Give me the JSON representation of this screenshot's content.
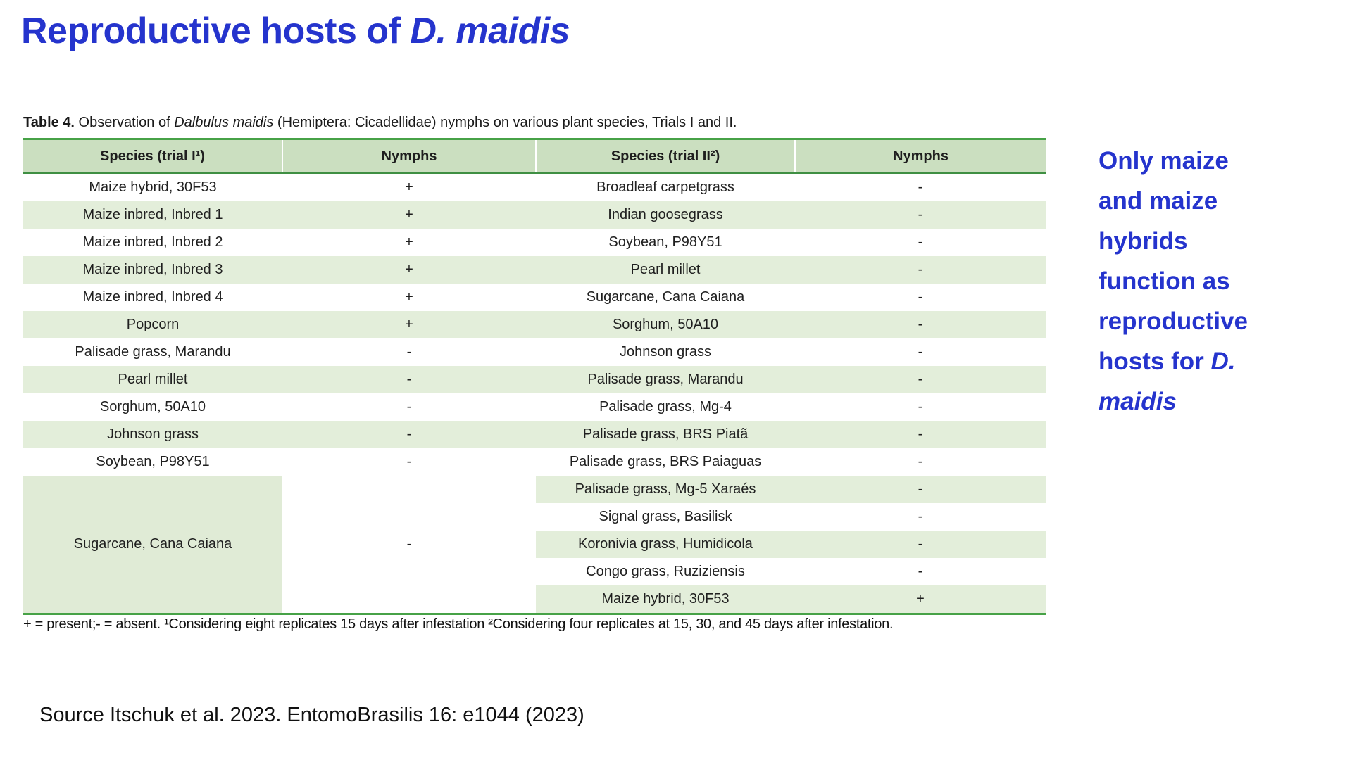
{
  "title": {
    "prefix": "Reproductive hosts of ",
    "italic": "D. maidis"
  },
  "caption": {
    "label": "Table 4.",
    "text_before_italic": " Observation of ",
    "italic": "Dalbulus maidis",
    "text_after_italic": " (Hemiptera: Cicadellidae) nymphs on various plant species, Trials I and II."
  },
  "table": {
    "columns": [
      "Species (trial I¹)",
      "Nymphs",
      "Species (trial II²)",
      "Nymphs"
    ],
    "rows": [
      {
        "species1": "Maize hybrid, 30F53",
        "nymphs1": "+",
        "species2": "Broadleaf carpetgrass",
        "nymphs2": "-"
      },
      {
        "species1": "Maize inbred, Inbred 1",
        "nymphs1": "+",
        "species2": "Indian goosegrass",
        "nymphs2": "-"
      },
      {
        "species1": "Maize inbred, Inbred 2",
        "nymphs1": "+",
        "species2": "Soybean, P98Y51",
        "nymphs2": "-"
      },
      {
        "species1": "Maize inbred, Inbred 3",
        "nymphs1": "+",
        "species2": "Pearl millet",
        "nymphs2": "-"
      },
      {
        "species1": "Maize inbred, Inbred 4",
        "nymphs1": "+",
        "species2": "Sugarcane, Cana Caiana",
        "nymphs2": "-"
      },
      {
        "species1": "Popcorn",
        "nymphs1": "+",
        "species2": "Sorghum, 50A10",
        "nymphs2": "-"
      },
      {
        "species1": "Palisade grass, Marandu",
        "nymphs1": "-",
        "species2": "Johnson grass",
        "nymphs2": "-"
      },
      {
        "species1": "Pearl millet",
        "nymphs1": "-",
        "species2": "Palisade grass, Marandu",
        "nymphs2": "-"
      },
      {
        "species1": "Sorghum, 50A10",
        "nymphs1": "-",
        "species2": "Palisade grass, Mg-4",
        "nymphs2": "-"
      },
      {
        "species1": "Johnson grass",
        "nymphs1": "-",
        "species2": "Palisade grass, BRS Piatã",
        "nymphs2": "-"
      },
      {
        "species1": "Soybean, P98Y51",
        "nymphs1": "-",
        "species2": "Palisade grass, BRS Paiaguas",
        "nymphs2": "-"
      }
    ],
    "merged_rows": {
      "species1": "Sugarcane, Cana Caiana",
      "nymphs1": "-",
      "rows": [
        {
          "species2": "Palisade grass, Mg-5 Xaraés",
          "nymphs2": "-"
        },
        {
          "species2": "Signal grass, Basilisk",
          "nymphs2": "-"
        },
        {
          "species2": "Koronivia grass, Humidicola",
          "nymphs2": "-"
        },
        {
          "species2": "Congo grass, Ruziziensis",
          "nymphs2": "-"
        },
        {
          "species2": "Maize hybrid, 30F53",
          "nymphs2": "+"
        }
      ]
    },
    "footnote": "+ = present;- = absent. ¹Considering eight replicates 15 days after infestation ²Considering four replicates at 15, 30, and 45 days after infestation."
  },
  "callout": {
    "lines": [
      {
        "text": "Only maize"
      },
      {
        "text": "and maize"
      },
      {
        "text": "hybrids"
      },
      {
        "text": "function as"
      },
      {
        "text": "reproductive"
      },
      {
        "text": "hosts for ",
        "italic": "D."
      },
      {
        "text": "",
        "italic": "maidis"
      }
    ]
  },
  "source": "Source Itschuk et al. 2023. EntomoBrasilis 16: e1044 (2023)",
  "colors": {
    "accent_blue": "#2534cd",
    "header_green": "#cbdfc0",
    "row_green": "#e3eeda",
    "merged_green": "#e0ebd6",
    "border_green": "#47a247",
    "border_underline": "#3f8f43"
  }
}
